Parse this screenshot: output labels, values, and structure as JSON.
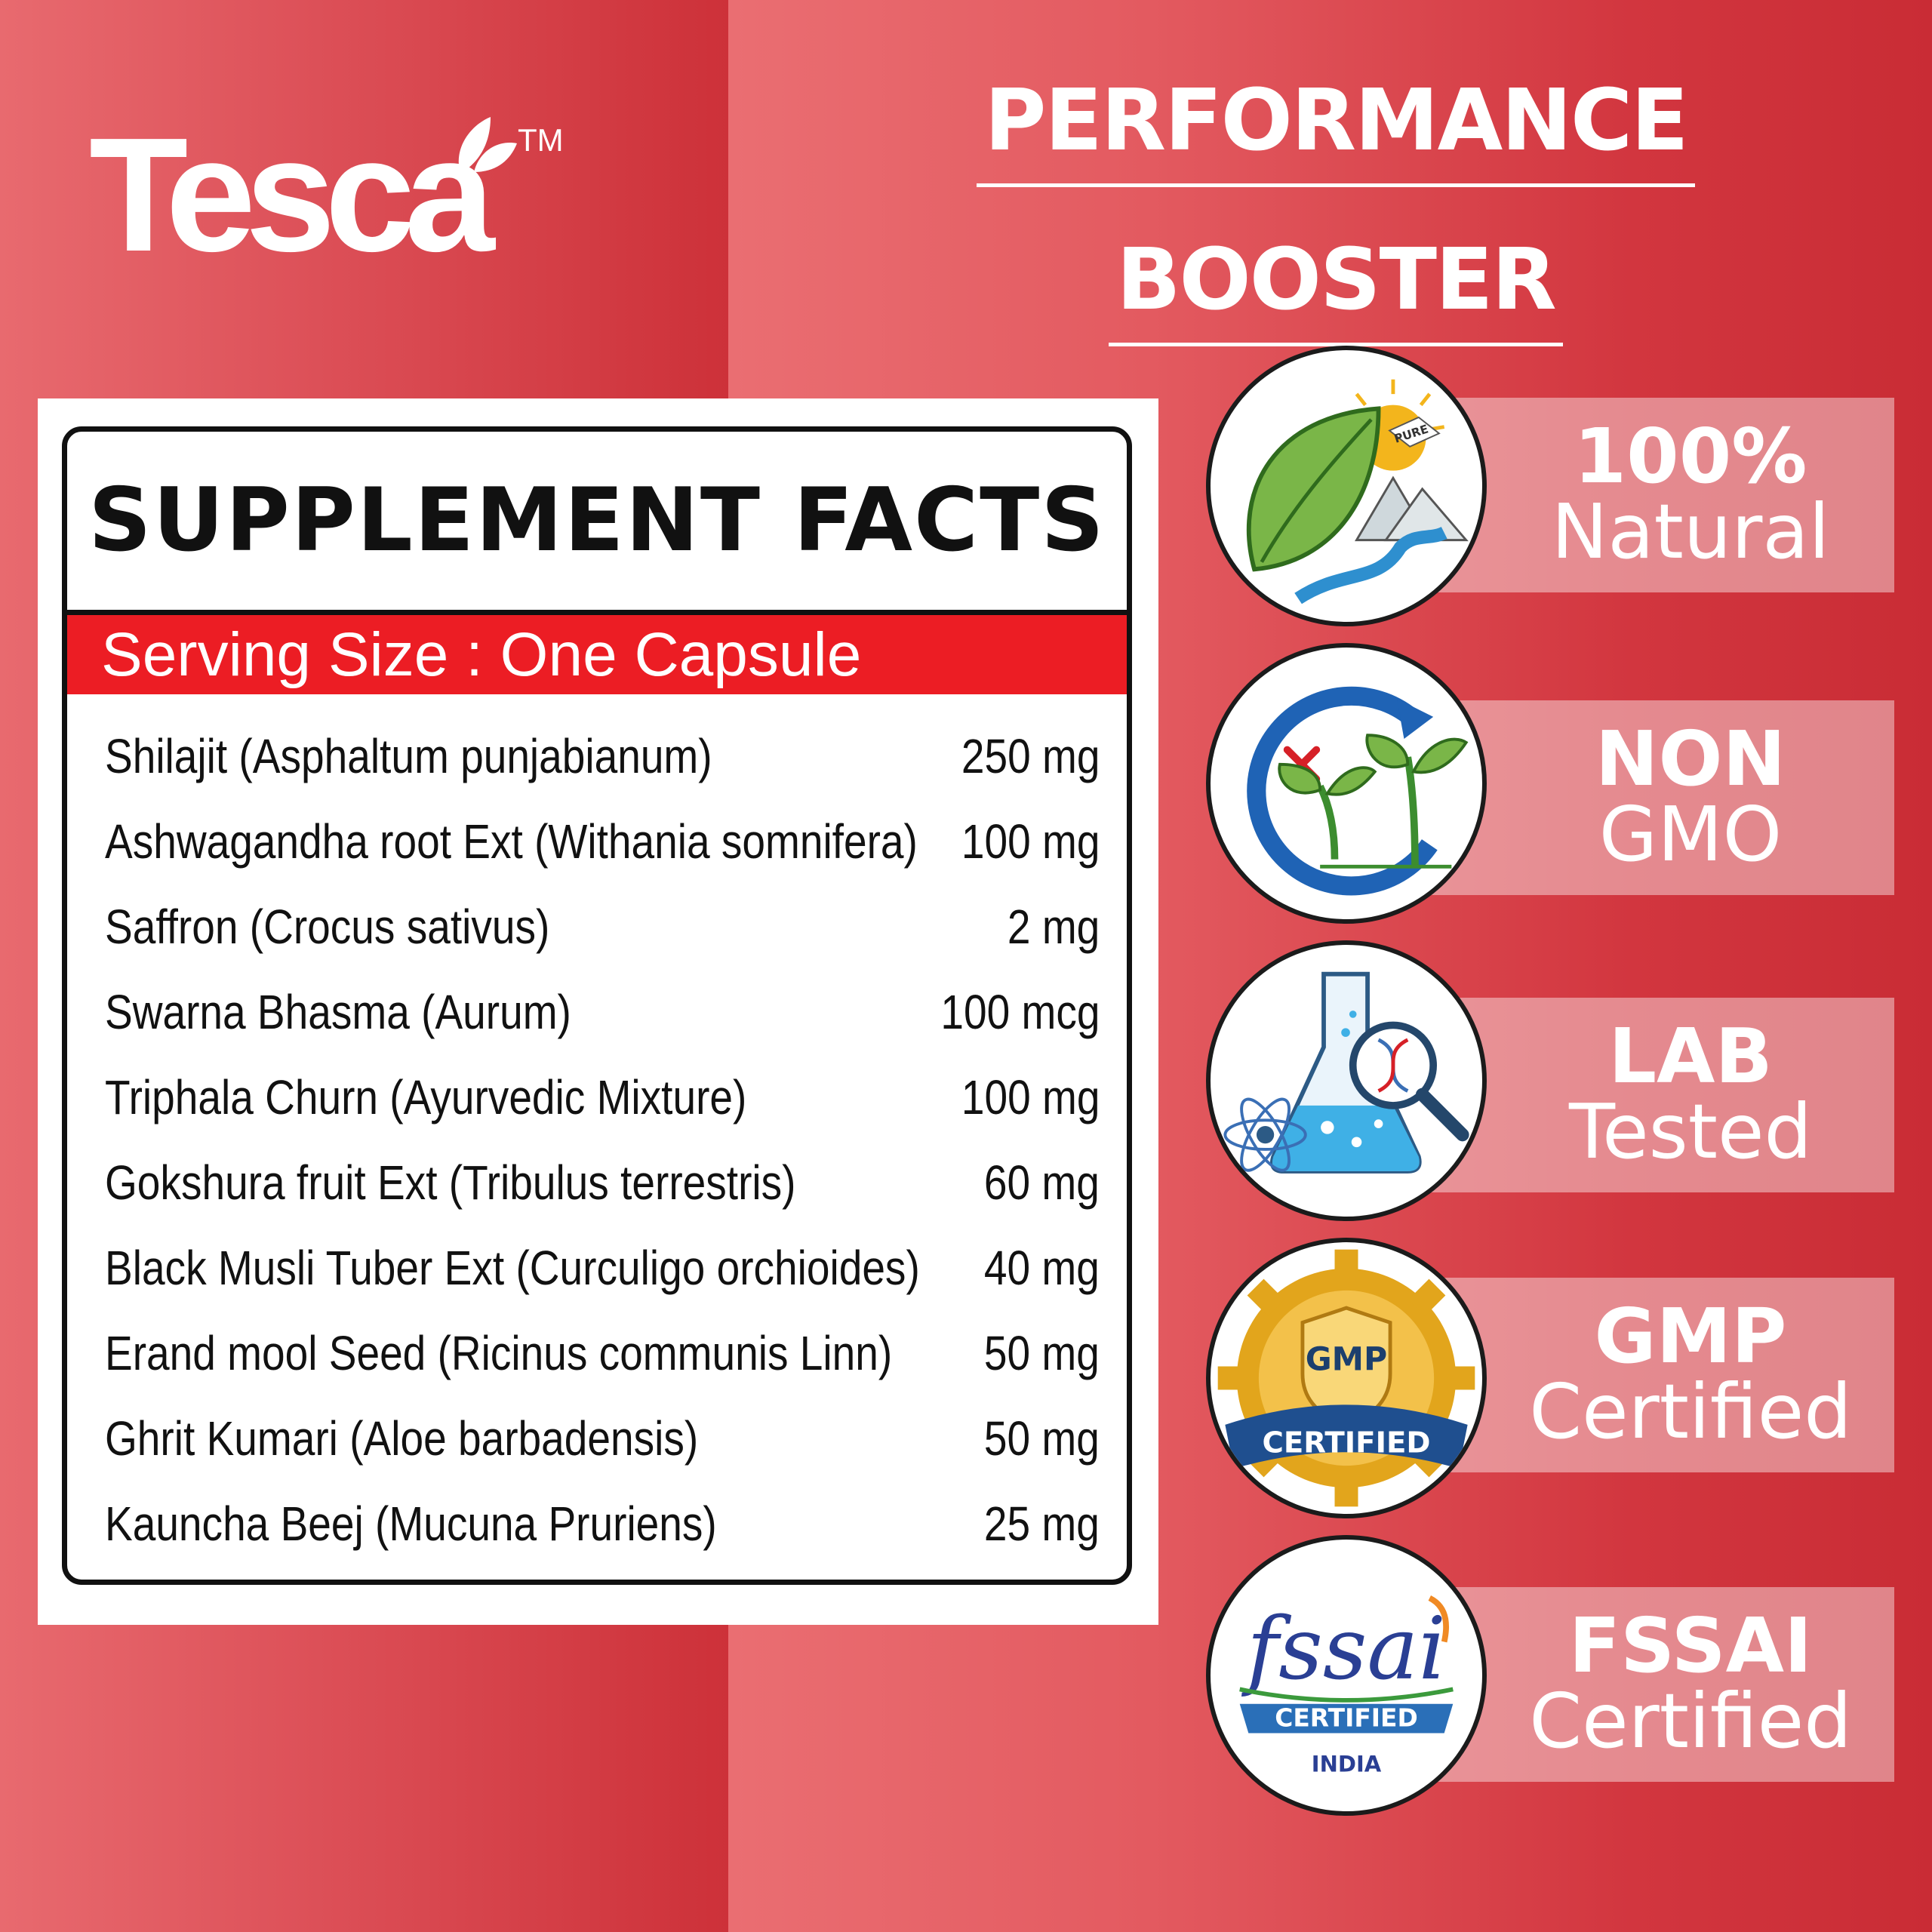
{
  "brand": {
    "name": "Tesca",
    "tm": "TM"
  },
  "headline": {
    "line1": "PERFORMANCE",
    "line2": "BOOSTER"
  },
  "supplement": {
    "title": "SUPPLEMENT FACTS",
    "serving_size": "Serving Size : One Capsule",
    "ingredients": [
      {
        "name": "Shilajit (Asphaltum punjabianum)",
        "amount": "250 mg"
      },
      {
        "name": "Ashwagandha root Ext (Withania somnifera)",
        "amount": "100 mg"
      },
      {
        "name": "Saffron (Crocus sativus)",
        "amount": "2 mg"
      },
      {
        "name": "Swarna Bhasma (Aurum)",
        "amount": "100 mcg"
      },
      {
        "name": "Triphala Churn (Ayurvedic Mixture)",
        "amount": "100 mg"
      },
      {
        "name": "Gokshura fruit Ext (Tribulus terrestris)",
        "amount": "60 mg"
      },
      {
        "name": "Black Musli Tuber Ext (Curculigo orchioides)",
        "amount": "40 mg"
      },
      {
        "name": "Erand mool Seed (Ricinus communis Linn)",
        "amount": "50 mg"
      },
      {
        "name": "Ghrit Kumari (Aloe barbadensis)",
        "amount": "50 mg"
      },
      {
        "name": "Kauncha Beej (Mucuna Pruriens)",
        "amount": "25 mg"
      }
    ]
  },
  "badges": [
    {
      "icon": "natural-leaf-icon",
      "bold": "100%",
      "light": "Natural",
      "icon_text": "PURE"
    },
    {
      "icon": "non-gmo-sprout-icon",
      "bold": "NON",
      "light": "GMO"
    },
    {
      "icon": "lab-flask-icon",
      "bold": "LAB",
      "light": "Tested"
    },
    {
      "icon": "gmp-seal-icon",
      "bold": "GMP",
      "light": "Certified",
      "icon_text": "GMP",
      "icon_text2": "CERTIFIED"
    },
    {
      "icon": "fssai-logo-icon",
      "bold": "FSSAI",
      "light": "Certified",
      "icon_text": "fssai",
      "icon_text2": "CERTIFIED",
      "icon_text3": "INDIA"
    }
  ],
  "colors": {
    "background_red": "#dc4f57",
    "serving_bar": "#ec1d24",
    "gmp_gold": "#e2a51c",
    "fssai_blue": "#2a3f94"
  }
}
